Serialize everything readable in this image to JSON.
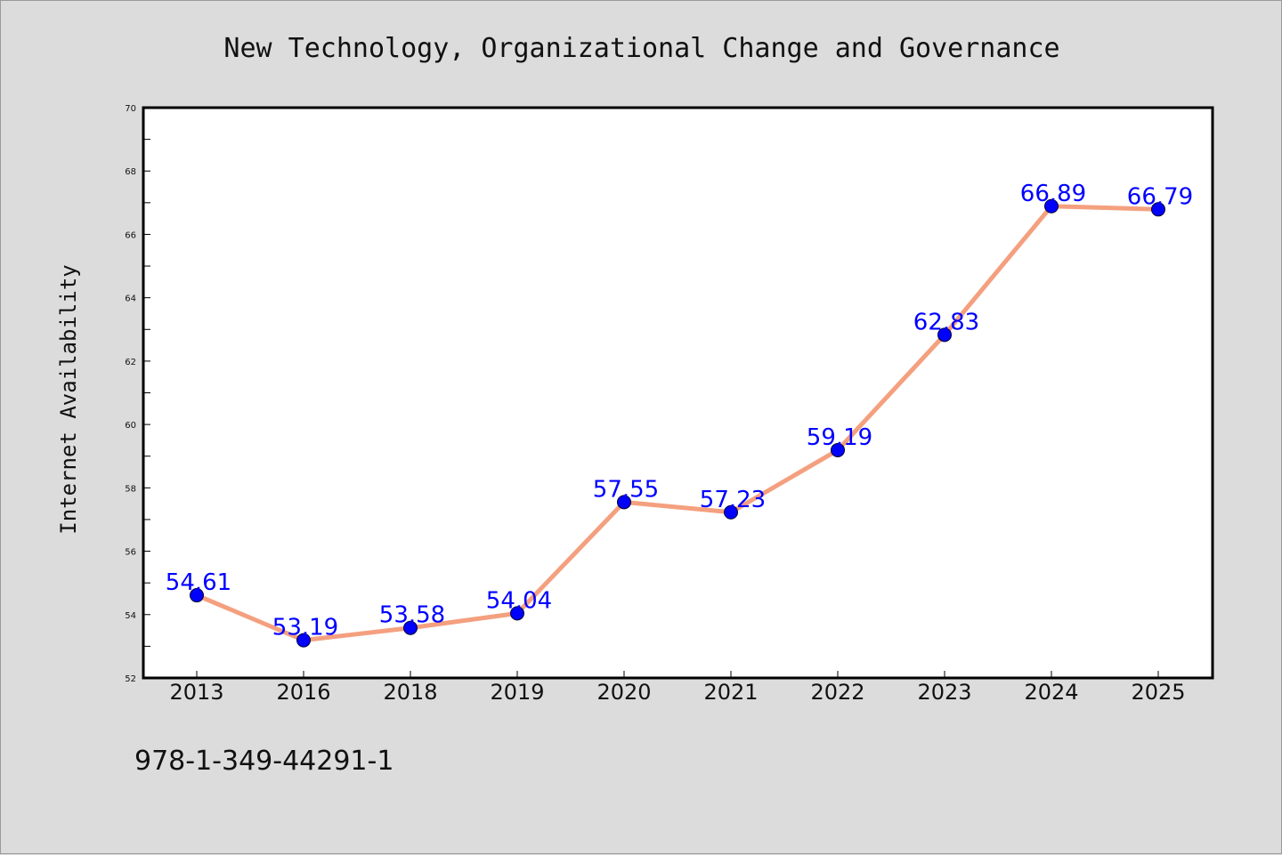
{
  "chart_data": {
    "type": "line",
    "title": "New Technology, Organizational Change and Governance",
    "xlabel": "",
    "ylabel": "Internet Availability",
    "categories": [
      "2013",
      "2016",
      "2018",
      "2019",
      "2020",
      "2021",
      "2022",
      "2023",
      "2024",
      "2025"
    ],
    "series": [
      {
        "values": [
          54.61,
          53.19,
          53.58,
          54.04,
          57.55,
          57.23,
          59.19,
          62.83,
          66.89,
          66.79
        ],
        "data_labels": [
          "54.61",
          "53.19",
          "53.58",
          "54.04",
          "57.55",
          "57.23",
          "59.19",
          "62.83",
          "66.89",
          "66.79"
        ]
      }
    ],
    "ylim": [
      52,
      70
    ],
    "yticks": [
      "52",
      "54",
      "56",
      "58",
      "60",
      "62",
      "64",
      "66",
      "68",
      "70"
    ],
    "grid": false,
    "legend": "none",
    "colors": {
      "line": "#f4a07f",
      "marker": "#0000ff",
      "data_label": "#0000ff",
      "plot_background": "#ffffff",
      "figure_background": "#dcdcdc"
    }
  },
  "footer_text": "978-1-349-44291-1"
}
